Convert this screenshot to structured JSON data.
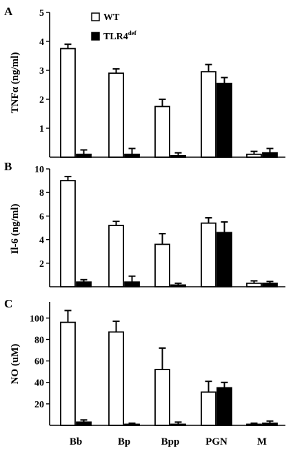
{
  "chart_data": [
    {
      "panel": "A",
      "type": "bar",
      "ylabel": "TNFα (ng/ml)",
      "ylim": [
        0,
        5
      ],
      "yticks": [
        "1",
        "2",
        "3",
        "4",
        "5"
      ],
      "categories": [
        "Bb",
        "Bp",
        "Bpp",
        "PGN",
        "M"
      ],
      "legend": {
        "position": "top-center"
      },
      "series": [
        {
          "name": "WT",
          "color": "#ffffff",
          "values": [
            3.75,
            2.9,
            1.75,
            2.95,
            0.1
          ],
          "errors": [
            0.15,
            0.15,
            0.25,
            0.25,
            0.1
          ]
        },
        {
          "name": "TLR4def",
          "color": "#000000",
          "values": [
            0.1,
            0.1,
            0.05,
            2.55,
            0.15
          ],
          "errors": [
            0.15,
            0.2,
            0.1,
            0.2,
            0.15
          ]
        }
      ]
    },
    {
      "panel": "B",
      "type": "bar",
      "ylabel": "Il-6 (ng/ml)",
      "ylim": [
        0,
        10
      ],
      "yticks": [
        "2",
        "4",
        "6",
        "8",
        "10"
      ],
      "categories": [
        "Bb",
        "Bp",
        "Bpp",
        "PGN",
        "M"
      ],
      "series": [
        {
          "name": "WT",
          "color": "#ffffff",
          "values": [
            9.0,
            5.2,
            3.6,
            5.4,
            0.3
          ],
          "errors": [
            0.35,
            0.35,
            0.9,
            0.45,
            0.2
          ]
        },
        {
          "name": "TLR4def",
          "color": "#000000",
          "values": [
            0.4,
            0.4,
            0.15,
            4.6,
            0.3
          ],
          "errors": [
            0.2,
            0.5,
            0.15,
            0.9,
            0.15
          ]
        }
      ]
    },
    {
      "panel": "C",
      "type": "bar",
      "ylabel": "NO (uM)",
      "ylim": [
        0,
        115
      ],
      "yticks": [
        "20",
        "40",
        "60",
        "80",
        "100"
      ],
      "categories": [
        "Bb",
        "Bp",
        "Bpp",
        "PGN",
        "M"
      ],
      "series": [
        {
          "name": "WT",
          "color": "#ffffff",
          "values": [
            96,
            87,
            52,
            31,
            1
          ],
          "errors": [
            11,
            10,
            20,
            10,
            1
          ]
        },
        {
          "name": "TLR4def",
          "color": "#000000",
          "values": [
            3,
            1,
            1,
            35,
            2
          ],
          "errors": [
            2,
            1,
            2,
            5,
            2
          ]
        }
      ]
    }
  ],
  "legend": {
    "wt_label": "WT",
    "tlr4_label": "TLR4",
    "tlr4_superscript": "def"
  }
}
